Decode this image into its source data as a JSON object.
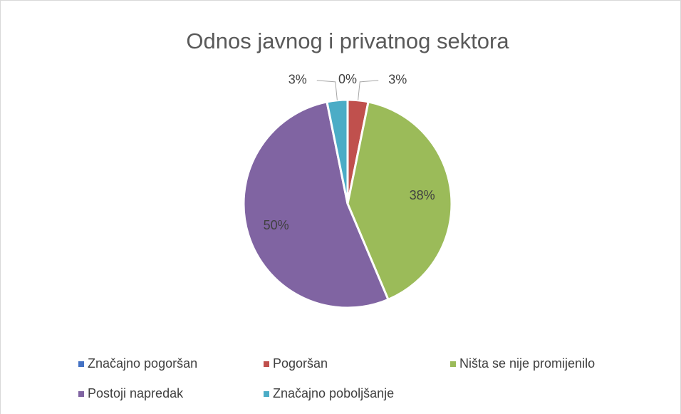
{
  "chart_data": {
    "type": "pie",
    "title": "Odnos javnog i privatnog sektora",
    "categories": [
      "Značajno pogoršan",
      "Pogoršan",
      "Ništa se nije promijenilo",
      "Postoji napredak",
      "Značajno poboljšanje"
    ],
    "values": [
      0,
      3,
      38,
      50,
      3
    ],
    "value_labels": [
      "0%",
      "3%",
      "38%",
      "50%",
      "3%"
    ],
    "colors": [
      "#4472c4",
      "#c0504d",
      "#9bbb59",
      "#8064a2",
      "#4bacc6"
    ],
    "legend": "bottom"
  }
}
